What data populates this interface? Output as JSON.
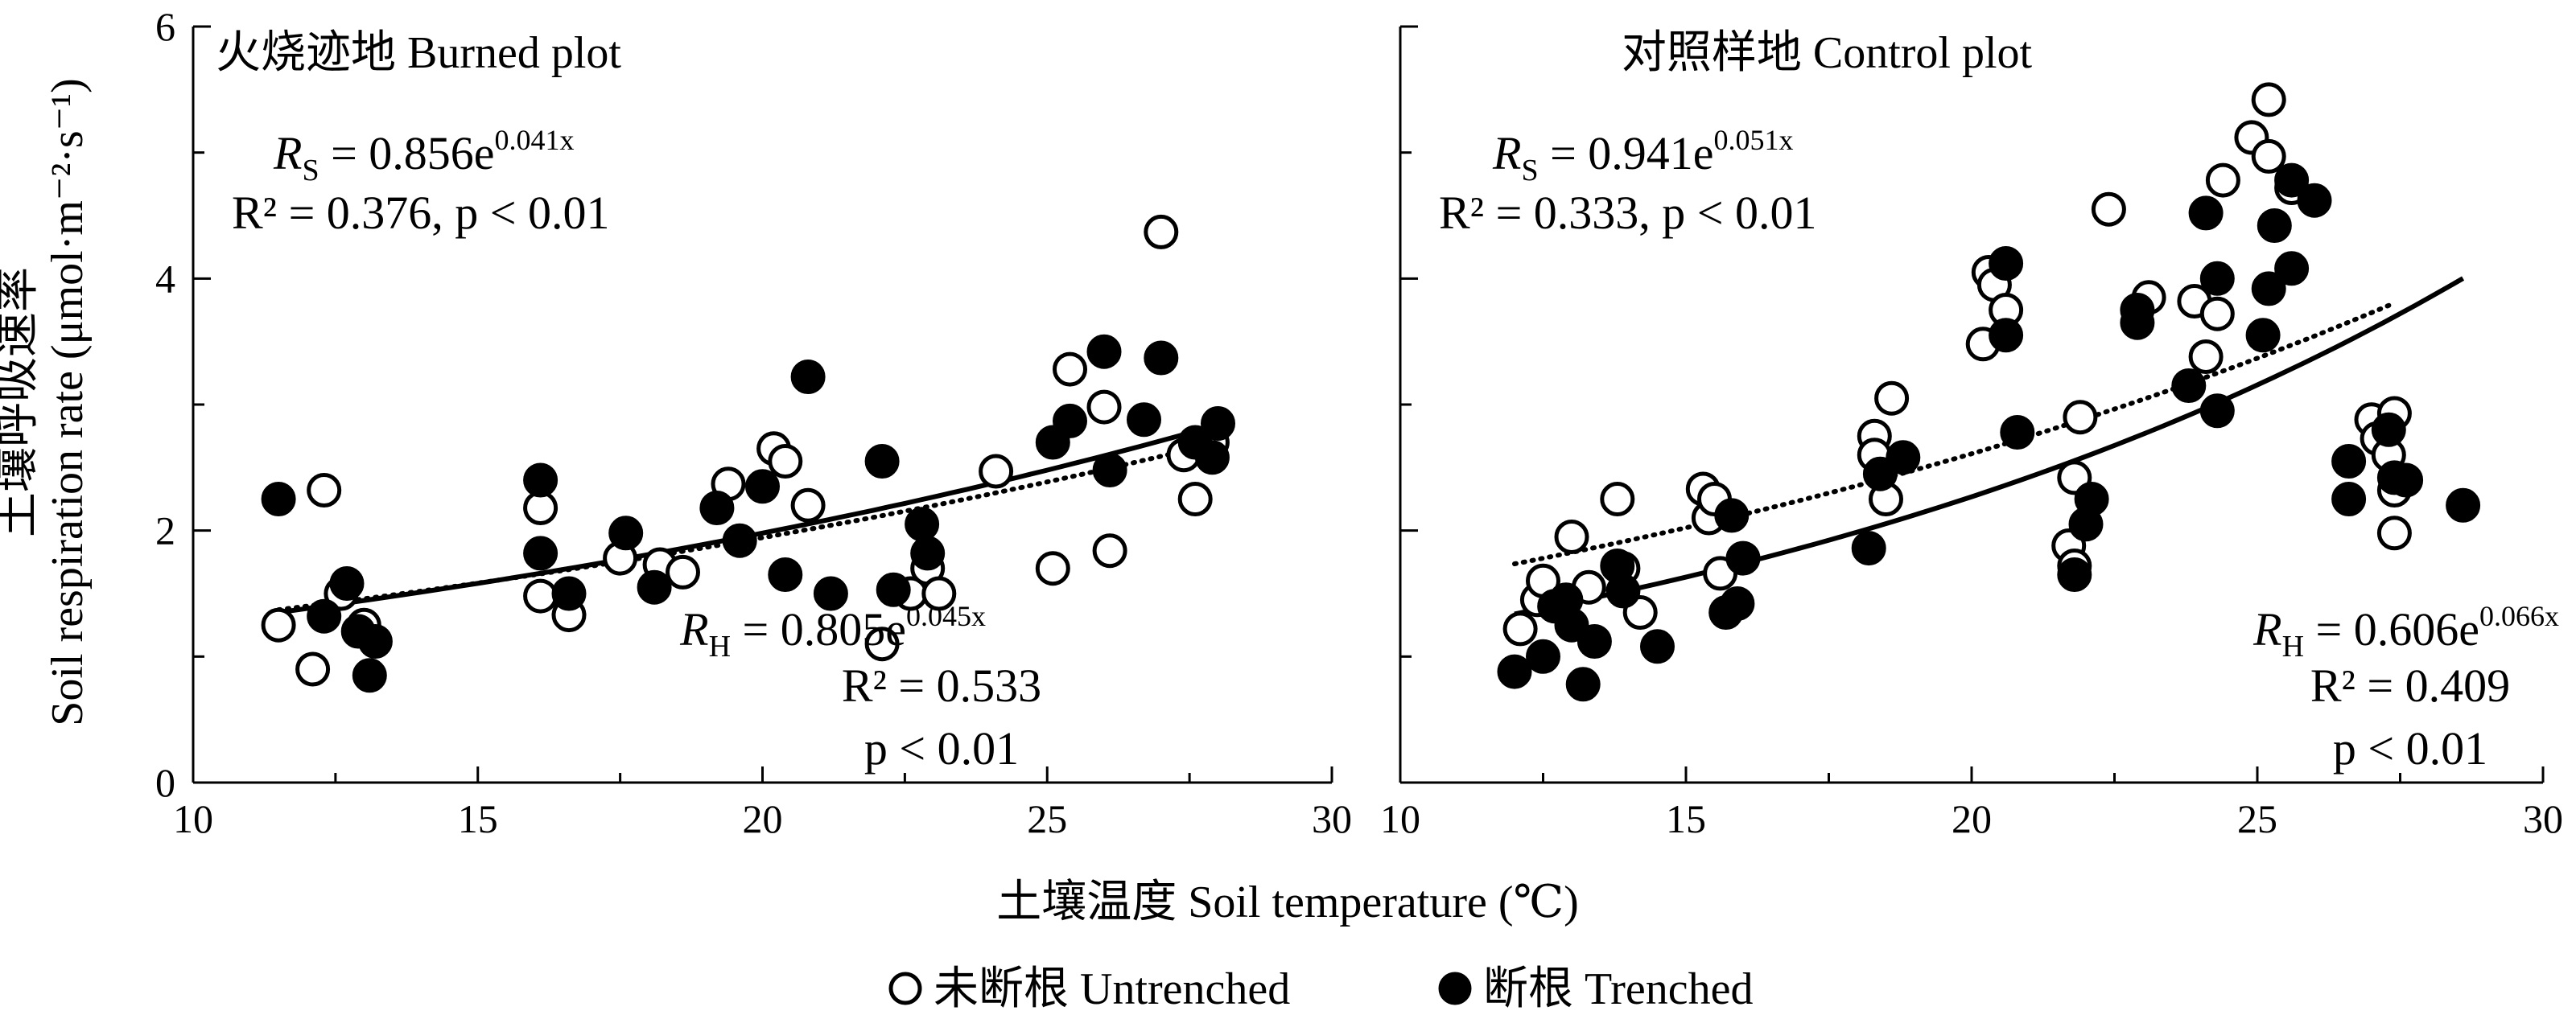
{
  "chart_data": [
    {
      "type": "scatter",
      "title": "火烧迹地 Burned plot",
      "xlabel": "土壤温度 Soil temperature (℃)",
      "ylabel_cn": "土壤呼吸速率",
      "ylabel_en": "Soil respiration rate (μmol·m⁻²·s⁻¹)",
      "xlim": [
        10,
        30
      ],
      "ylim": [
        0,
        6
      ],
      "xticks": [
        "10",
        "15",
        "20",
        "25",
        "30"
      ],
      "yticks": [
        "0",
        "2",
        "4",
        "6"
      ],
      "series": [
        {
          "name": "未断根 Untrenched",
          "marker": "open-circle",
          "points": [
            [
              11.5,
              1.25
            ],
            [
              12.1,
              0.9
            ],
            [
              12.3,
              2.32
            ],
            [
              12.6,
              1.5
            ],
            [
              13.0,
              1.25
            ],
            [
              16.1,
              2.18
            ],
            [
              16.1,
              1.48
            ],
            [
              16.6,
              1.33
            ],
            [
              17.5,
              1.78
            ],
            [
              18.2,
              1.73
            ],
            [
              18.6,
              1.67
            ],
            [
              19.4,
              2.37
            ],
            [
              20.2,
              2.65
            ],
            [
              20.4,
              2.55
            ],
            [
              20.8,
              2.2
            ],
            [
              22.1,
              1.1
            ],
            [
              22.6,
              1.5
            ],
            [
              22.9,
              1.7
            ],
            [
              23.1,
              1.5
            ],
            [
              24.1,
              2.47
            ],
            [
              25.1,
              1.7
            ],
            [
              25.4,
              3.28
            ],
            [
              26.0,
              2.98
            ],
            [
              26.1,
              1.84
            ],
            [
              27.0,
              4.37
            ],
            [
              27.4,
              2.6
            ],
            [
              27.6,
              2.25
            ],
            [
              27.9,
              2.7
            ]
          ]
        },
        {
          "name": "断根 Trenched",
          "marker": "filled-circle",
          "points": [
            [
              11.5,
              2.25
            ],
            [
              12.3,
              1.32
            ],
            [
              12.7,
              1.58
            ],
            [
              12.9,
              1.2
            ],
            [
              13.1,
              0.85
            ],
            [
              13.2,
              1.12
            ],
            [
              16.1,
              2.4
            ],
            [
              16.1,
              1.82
            ],
            [
              16.6,
              1.5
            ],
            [
              17.6,
              1.98
            ],
            [
              18.1,
              1.55
            ],
            [
              19.2,
              2.18
            ],
            [
              19.6,
              1.92
            ],
            [
              20.0,
              2.35
            ],
            [
              20.4,
              1.65
            ],
            [
              20.8,
              3.22
            ],
            [
              21.2,
              1.5
            ],
            [
              22.1,
              2.55
            ],
            [
              22.3,
              1.53
            ],
            [
              22.8,
              2.05
            ],
            [
              22.9,
              1.82
            ],
            [
              25.1,
              2.7
            ],
            [
              25.4,
              2.87
            ],
            [
              26.0,
              3.42
            ],
            [
              26.1,
              2.48
            ],
            [
              26.7,
              2.88
            ],
            [
              27.0,
              3.37
            ],
            [
              27.6,
              2.7
            ],
            [
              27.9,
              2.58
            ],
            [
              28.0,
              2.85
            ]
          ]
        }
      ],
      "fits": [
        {
          "for": "未断根 Untrenched",
          "style": "dotted",
          "a": 0.856,
          "b": 0.041,
          "x_range": [
            11.5,
            28.0
          ]
        },
        {
          "for": "断根 Trenched",
          "style": "solid",
          "a": 0.805,
          "b": 0.045,
          "x_range": [
            11.5,
            28.0
          ]
        }
      ],
      "annotations": {
        "rs_eq_prefix": "R",
        "rs_eq_sub": "S",
        "rs_eq_mid": " = 0.856e",
        "rs_eq_sup": "0.041x",
        "rs_stats": "R² = 0.376, p < 0.01",
        "rh_eq_prefix": "R",
        "rh_eq_sub": "H",
        "rh_eq_mid": " = 0.805e",
        "rh_eq_sup": "0.045x",
        "rh_r2": "R² = 0.533",
        "rh_p": "p < 0.01"
      }
    },
    {
      "type": "scatter",
      "title": "对照样地 Control plot",
      "xlim": [
        10,
        30
      ],
      "ylim": [
        0,
        6
      ],
      "xticks": [
        "10",
        "15",
        "20",
        "25",
        "30"
      ],
      "series": [
        {
          "name": "未断根 Untrenched",
          "marker": "open-circle",
          "points": [
            [
              12.1,
              1.22
            ],
            [
              12.4,
              1.45
            ],
            [
              12.5,
              1.6
            ],
            [
              13.0,
              1.95
            ],
            [
              13.3,
              1.55
            ],
            [
              13.8,
              2.25
            ],
            [
              13.9,
              1.7
            ],
            [
              14.2,
              1.35
            ],
            [
              15.3,
              2.33
            ],
            [
              15.4,
              2.1
            ],
            [
              15.5,
              2.25
            ],
            [
              15.6,
              1.66
            ],
            [
              18.3,
              2.75
            ],
            [
              18.3,
              2.6
            ],
            [
              18.5,
              2.25
            ],
            [
              18.6,
              3.05
            ],
            [
              20.3,
              4.05
            ],
            [
              20.4,
              3.95
            ],
            [
              20.2,
              3.48
            ],
            [
              20.6,
              3.75
            ],
            [
              21.7,
              1.88
            ],
            [
              21.8,
              1.72
            ],
            [
              21.8,
              2.42
            ],
            [
              21.9,
              2.9
            ],
            [
              22.4,
              4.55
            ],
            [
              23.1,
              3.85
            ],
            [
              23.9,
              3.82
            ],
            [
              24.1,
              3.38
            ],
            [
              24.3,
              3.72
            ],
            [
              24.4,
              4.78
            ],
            [
              24.9,
              5.12
            ],
            [
              25.2,
              5.42
            ],
            [
              25.2,
              4.97
            ],
            [
              25.6,
              4.72
            ],
            [
              27.0,
              2.88
            ],
            [
              27.1,
              2.73
            ],
            [
              27.3,
              2.6
            ],
            [
              27.4,
              1.98
            ],
            [
              27.4,
              2.32
            ],
            [
              27.4,
              2.93
            ]
          ]
        },
        {
          "name": "断根 Trenched",
          "marker": "filled-circle",
          "points": [
            [
              12.0,
              0.88
            ],
            [
              12.5,
              1.0
            ],
            [
              12.7,
              1.4
            ],
            [
              12.9,
              1.45
            ],
            [
              13.0,
              1.25
            ],
            [
              13.2,
              0.78
            ],
            [
              13.4,
              1.12
            ],
            [
              13.8,
              1.72
            ],
            [
              13.9,
              1.52
            ],
            [
              14.5,
              1.08
            ],
            [
              15.7,
              1.35
            ],
            [
              15.8,
              2.12
            ],
            [
              15.9,
              1.42
            ],
            [
              16.0,
              1.78
            ],
            [
              18.2,
              1.86
            ],
            [
              18.4,
              2.45
            ],
            [
              18.8,
              2.58
            ],
            [
              20.6,
              4.12
            ],
            [
              20.6,
              3.55
            ],
            [
              20.8,
              2.78
            ],
            [
              21.8,
              1.65
            ],
            [
              22.0,
              2.05
            ],
            [
              22.1,
              2.25
            ],
            [
              22.9,
              3.65
            ],
            [
              22.9,
              3.75
            ],
            [
              23.8,
              3.15
            ],
            [
              24.1,
              4.52
            ],
            [
              24.3,
              2.95
            ],
            [
              24.3,
              4.0
            ],
            [
              25.1,
              3.55
            ],
            [
              25.2,
              3.92
            ],
            [
              25.3,
              4.42
            ],
            [
              25.6,
              4.78
            ],
            [
              25.6,
              4.08
            ],
            [
              26.0,
              4.62
            ],
            [
              26.6,
              2.55
            ],
            [
              26.6,
              2.25
            ],
            [
              27.3,
              2.8
            ],
            [
              27.4,
              2.42
            ],
            [
              27.6,
              2.4
            ],
            [
              28.6,
              2.2
            ]
          ]
        }
      ],
      "fits": [
        {
          "for": "未断根 Untrenched",
          "style": "dotted",
          "a": 0.941,
          "b": 0.051,
          "x_range": [
            12.0,
            27.4
          ]
        },
        {
          "for": "断根 Trenched",
          "style": "solid",
          "a": 0.606,
          "b": 0.066,
          "x_range": [
            12.0,
            28.6
          ]
        }
      ],
      "annotations": {
        "rs_eq_prefix": "R",
        "rs_eq_sub": "S",
        "rs_eq_mid": " = 0.941e",
        "rs_eq_sup": "0.051x",
        "rs_stats": "R² = 0.333, p < 0.01",
        "rh_eq_prefix": "R",
        "rh_eq_sub": "H",
        "rh_eq_mid": " = 0.606e",
        "rh_eq_sup": "0.066x",
        "rh_r2": "R² = 0.409",
        "rh_p": "p < 0.01"
      }
    }
  ],
  "legend": {
    "untrenched": "未断根 Untrenched",
    "trenched": "断根 Trenched"
  }
}
